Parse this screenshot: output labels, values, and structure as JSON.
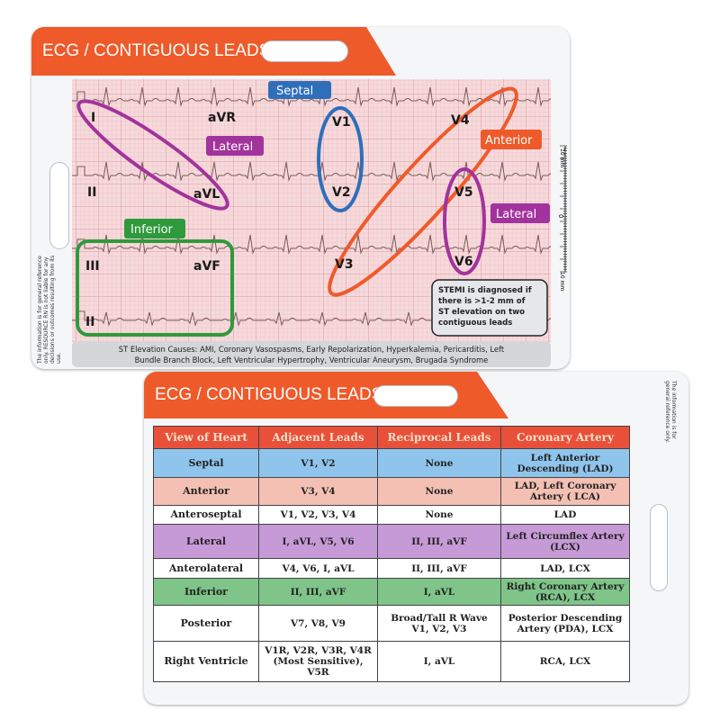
{
  "front": {
    "title": "ECG / CONTIGUOUS LEADS",
    "disclaimer": "The information is for general reference only. RESOURCE RN is not liable for any decisions or outcomes resulting from its use.",
    "leads": [
      "I",
      "aVR",
      "V1",
      "V4",
      "II",
      "aVL",
      "V2",
      "V5",
      "III",
      "aVF",
      "V3",
      "V6",
      "II"
    ],
    "tags": {
      "septal": "Septal",
      "lateral": "Lateral",
      "anterior": "Anterior",
      "lateral2": "Lateral",
      "inferior": "Inferior"
    },
    "ruler": {
      "top": "10 mm",
      "mid": "0",
      "bottom": "10 mm"
    },
    "stemi_note": [
      "STEMI is diagnosed if",
      "there is >1-2 mm of",
      "ST elevation on two",
      "contiguous leads"
    ],
    "causes": [
      "ST Elevation Causes: AMI, Coronary Vasospasms, Early Repolarization, Hyperkalemia, Pericarditis, Left",
      "Bundle Branch Block, Left Ventricular Hypertrophy, Ventricular Aneurysm, Brugada Syndrome"
    ],
    "colors": {
      "orange": "#ef5a2a",
      "blue": "#2f6fba",
      "purple": "#a2339c",
      "green": "#2e9a3c",
      "grid": "#f2cfd2"
    }
  },
  "back": {
    "title": "ECG / CONTIGUOUS LEADS",
    "disclaimer": "The information is for general reference only.",
    "headers": [
      "View of Heart",
      "Adjacent Leads",
      "Reciprocal Leads",
      "Coronary Artery"
    ],
    "rows": [
      {
        "view": "Septal",
        "adjacent": "V1, V2",
        "reciprocal": "None",
        "artery": "Left Anterior Descending (LAD)",
        "color": "#8fc4ec"
      },
      {
        "view": "Anterior",
        "adjacent": "V3, V4",
        "reciprocal": "None",
        "artery": "LAD, Left Coronary Artery ( LCA)",
        "color": "#f4c0b4"
      },
      {
        "view": "Anteroseptal",
        "adjacent": "V1, V2, V3, V4",
        "reciprocal": "None",
        "artery": "LAD",
        "color": "#ffffff"
      },
      {
        "view": "Lateral",
        "adjacent": "I, aVL, V5, V6",
        "reciprocal": "II, III, aVF",
        "artery": "Left Circumflex Artery (LCX)",
        "color": "#c69ad6"
      },
      {
        "view": "Anterolateral",
        "adjacent": "V4, V6, I, aVL",
        "reciprocal": "II, III, aVF",
        "artery": "LAD, LCX",
        "color": "#ffffff"
      },
      {
        "view": "Inferior",
        "adjacent": "II, III, aVF",
        "reciprocal": "I, aVL",
        "artery": "Right Coronary Artery (RCA), LCX",
        "color": "#7fc489"
      },
      {
        "view": "Posterior",
        "adjacent": "V7, V8, V9",
        "reciprocal": "Broad/Tall R Wave V1, V2, V3",
        "artery": "Posterior Descending Artery (PDA), LCX",
        "color": "#ffffff"
      },
      {
        "view": "Right Ventricle",
        "adjacent": "V1R, V2R, V3R, V4R (Most Sensitive), V5R",
        "reciprocal": "I, aVL",
        "artery": "RCA, LCX",
        "color": "#ffffff"
      }
    ]
  }
}
